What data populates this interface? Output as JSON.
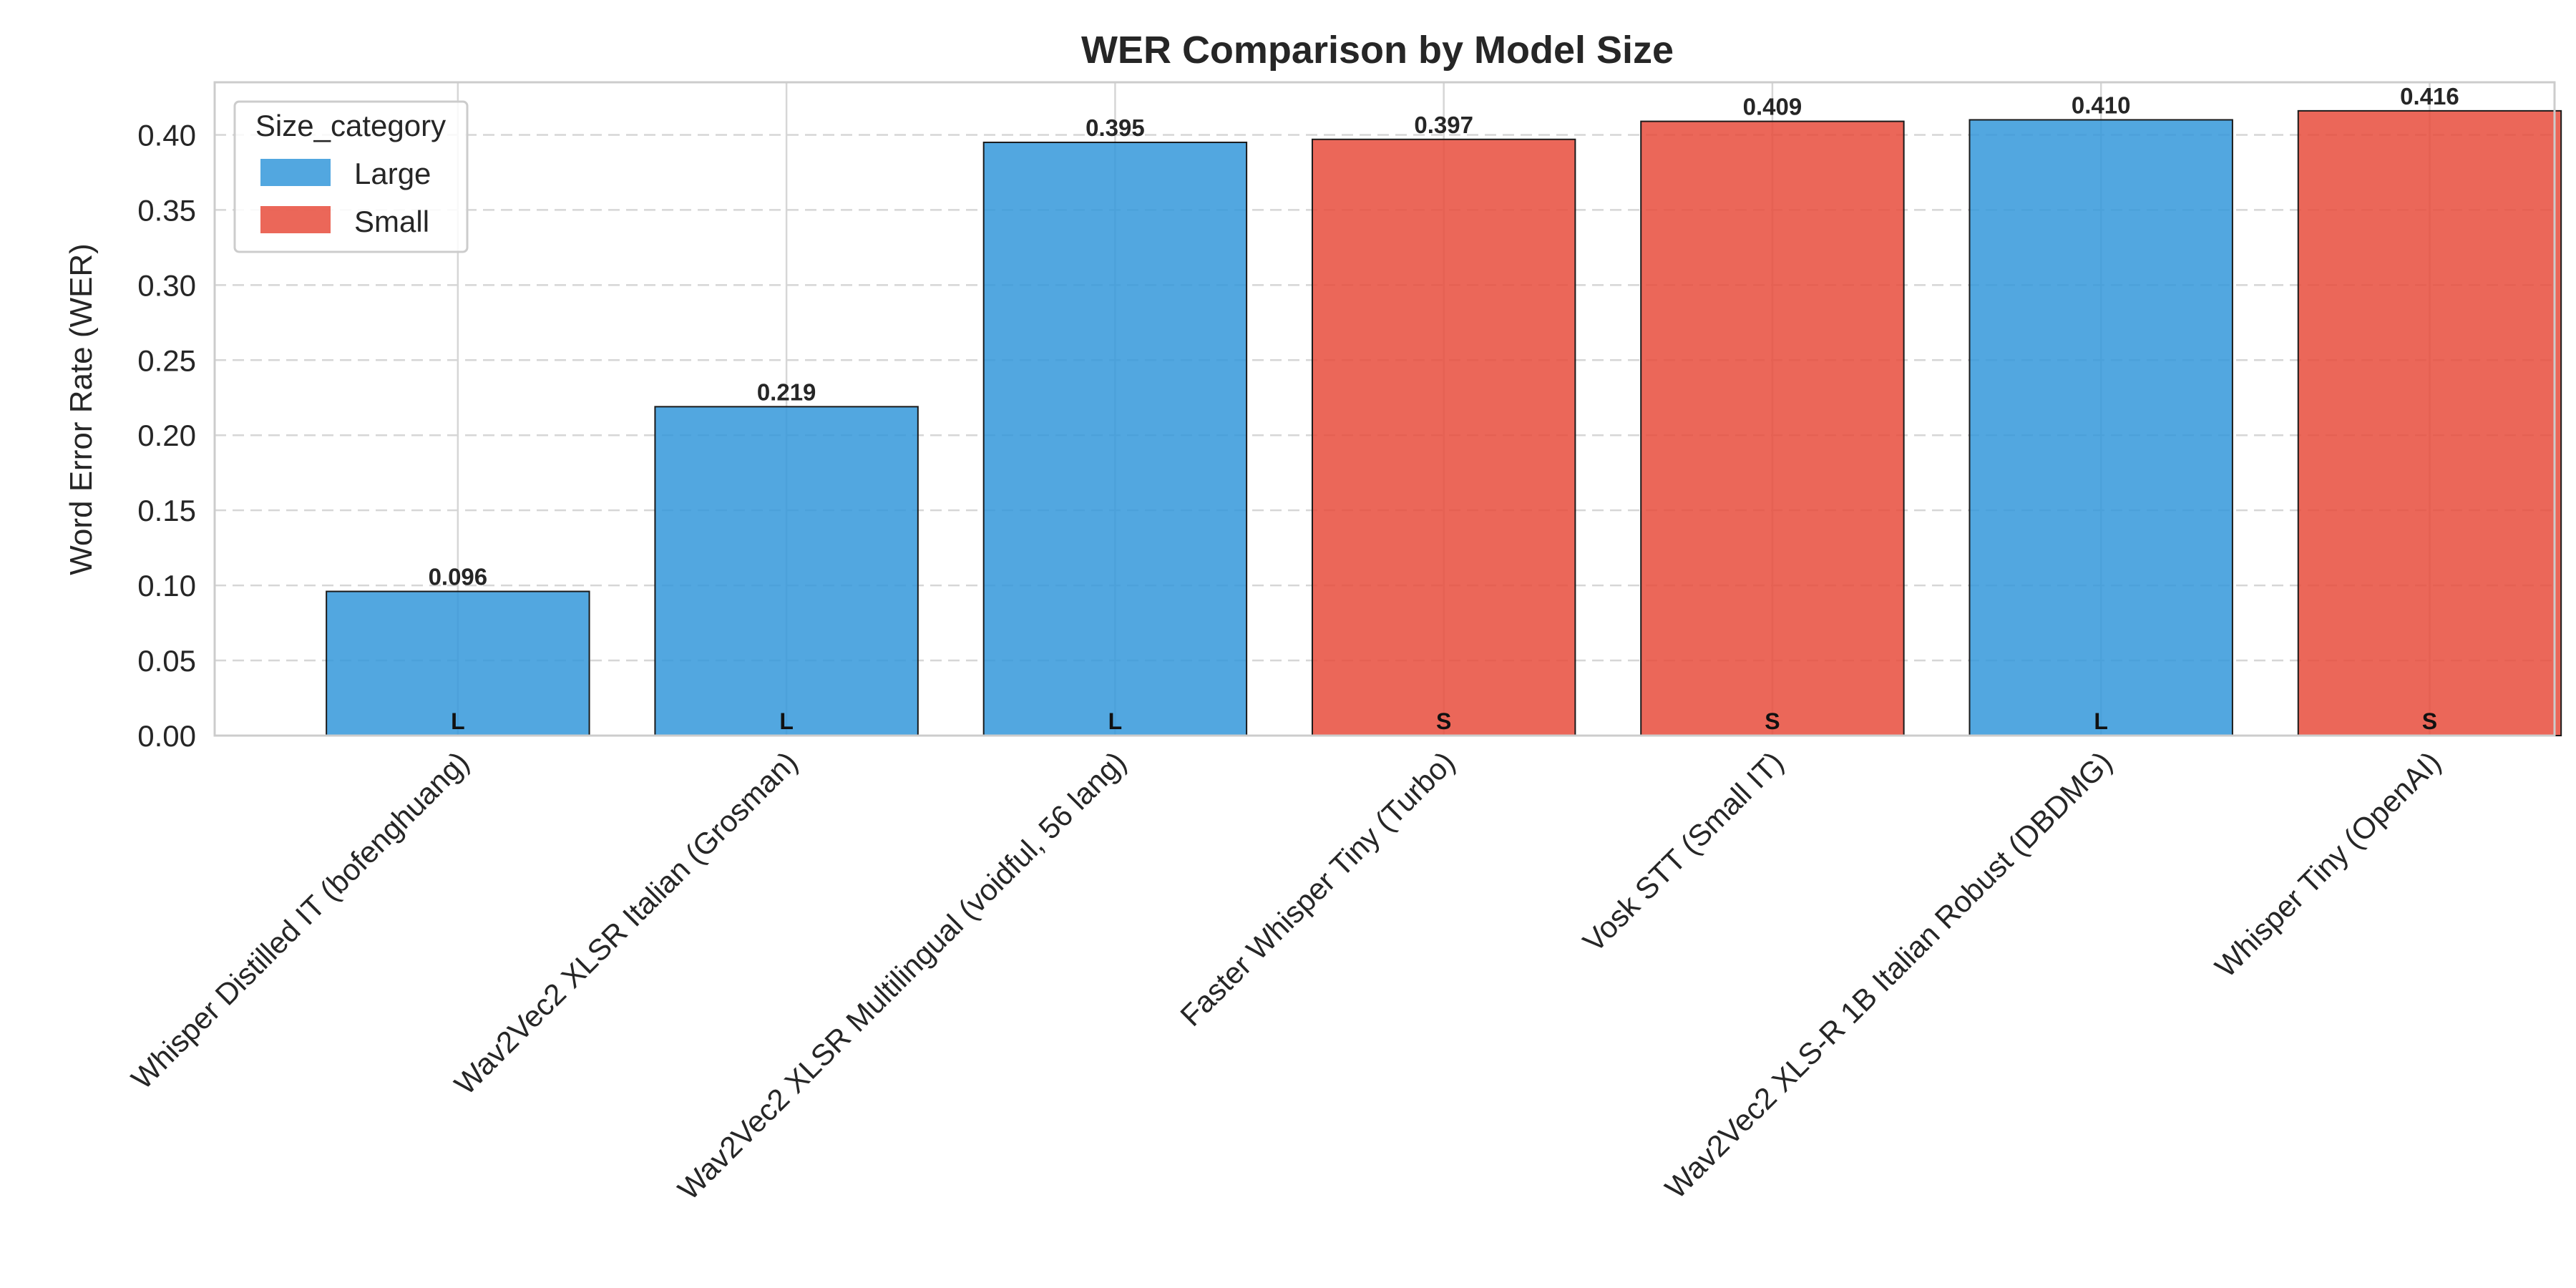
{
  "chart_data": {
    "type": "bar",
    "title": "WER Comparison by Model Size",
    "xlabel": "",
    "ylabel": "Word Error Rate (WER)",
    "ylim": [
      0,
      0.435
    ],
    "yticks": [
      "0.00",
      "0.05",
      "0.10",
      "0.15",
      "0.20",
      "0.25",
      "0.30",
      "0.35",
      "0.40"
    ],
    "grid": "horizontal dashed",
    "categories": [
      "Whisper Distilled IT (bofenghuang)",
      "Wav2Vec2 XLSR Italian (Grosman)",
      "Wav2Vec2 XLSR Multilingual (voidful, 56 lang)",
      "Faster Whisper Tiny (Turbo)",
      "Vosk STT (Small IT)",
      "Wav2Vec2 XLS-R 1B Italian Robust (DBDMG)",
      "Whisper Tiny (OpenAI)"
    ],
    "values": [
      0.096,
      0.219,
      0.395,
      0.397,
      0.409,
      0.41,
      0.416
    ],
    "value_labels": [
      "0.096",
      "0.219",
      "0.395",
      "0.397",
      "0.409",
      "0.410",
      "0.416"
    ],
    "size_tags": [
      "L",
      "L",
      "L",
      "S",
      "S",
      "L",
      "S"
    ],
    "groups": [
      "Large",
      "Large",
      "Large",
      "Small",
      "Small",
      "Large",
      "Small"
    ],
    "legend": {
      "title": "Size_category",
      "placement": "top-left",
      "entries": [
        {
          "name": "Large",
          "color": "#3498db"
        },
        {
          "name": "Small",
          "color": "#e74c3c"
        }
      ]
    },
    "colors": {
      "Large": "#3498db",
      "Small": "#e74c3c"
    }
  }
}
